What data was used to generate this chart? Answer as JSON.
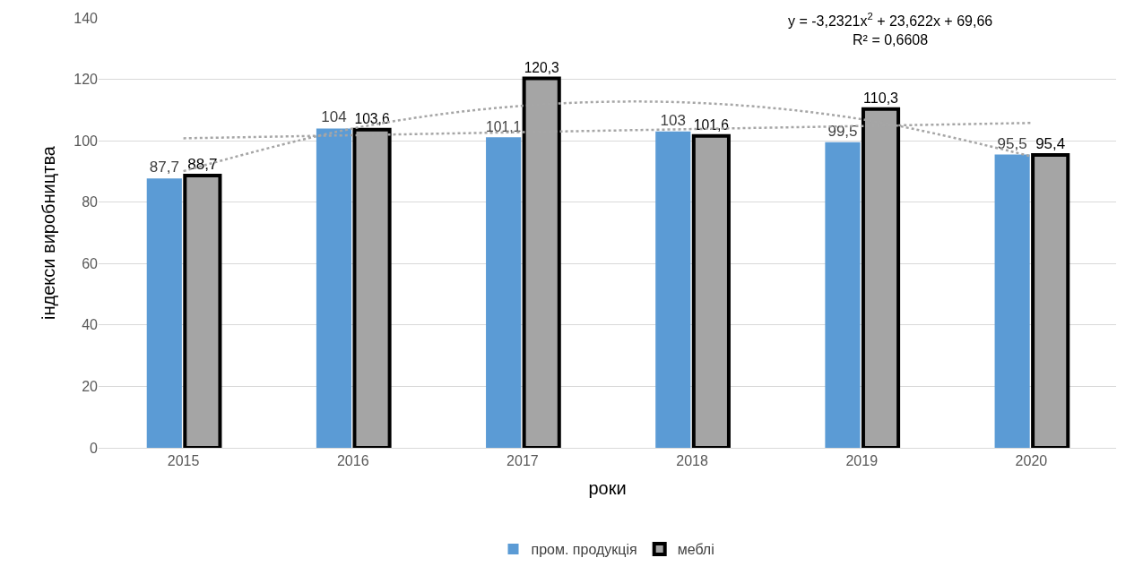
{
  "chart_data": {
    "type": "bar",
    "xlabel": "роки",
    "ylabel": "індекси виробництва",
    "categories": [
      "2015",
      "2016",
      "2017",
      "2018",
      "2019",
      "2020"
    ],
    "series": [
      {
        "name": "пром. продукція",
        "color": "#5b9bd5",
        "values": [
          87.7,
          104,
          101.1,
          103,
          99.5,
          95.5
        ],
        "value_labels": [
          "87,7",
          "104",
          "101,1",
          "103",
          "99,5",
          "95,5"
        ]
      },
      {
        "name": "меблі",
        "color": "#a5a5a5",
        "values": [
          88.7,
          103.6,
          120.3,
          101.6,
          110.3,
          95.4
        ],
        "value_labels": [
          "88,7",
          "103,6",
          "120,3",
          "101,6",
          "110,3",
          "95,4"
        ]
      },
      {
        "type": "line",
        "color": "#a6a6a6",
        "line_style": "dotted",
        "values": [
          100.8,
          101.8,
          102.8,
          103.8,
          104.8,
          105.8
        ]
      },
      {
        "type": "line",
        "color": "#a6a6a6",
        "line_style": "dotted",
        "values": [
          90.1,
          104.0,
          111.4,
          112.4,
          107.0,
          94.9
        ]
      }
    ],
    "ylim": [
      0,
      140
    ],
    "yticks": [
      0,
      20,
      40,
      60,
      80,
      100,
      120,
      140
    ],
    "grid": "y",
    "legend": "bottom",
    "annotations": [
      "y = -3,2321x$^{2}$ + 23,622x + 69,66\nR² = 0,6608"
    ]
  }
}
